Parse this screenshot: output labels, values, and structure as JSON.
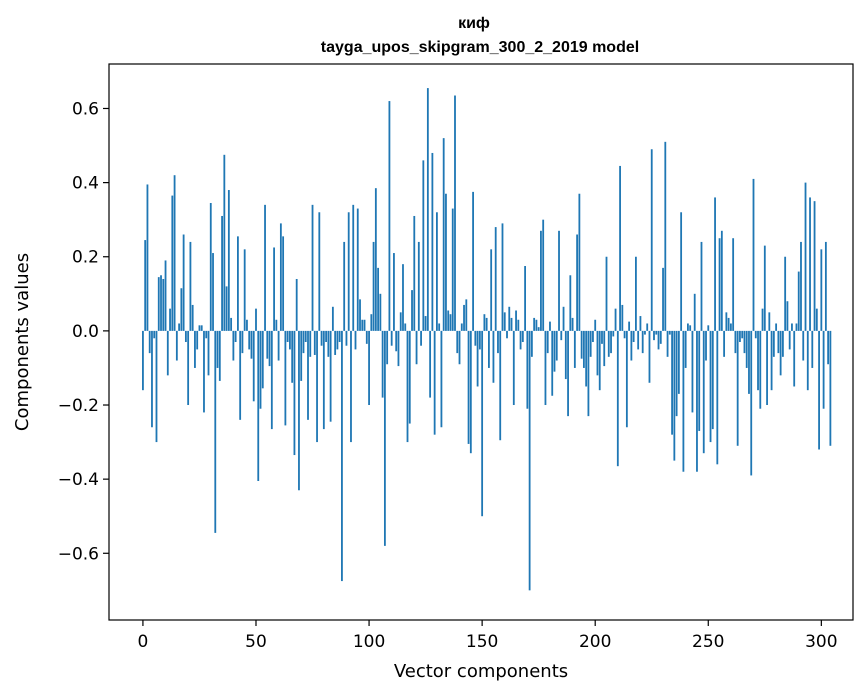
{
  "chart_data": {
    "type": "bar",
    "title": "киф",
    "subtitle": "tayga_upos_skipgram_300_2_2019 model",
    "xlabel": "Vector components",
    "ylabel": "Components values",
    "xlim": [
      -15,
      314
    ],
    "ylim": [
      -0.78,
      0.72
    ],
    "xticks": [
      0,
      50,
      100,
      150,
      200,
      250,
      300
    ],
    "yticks": [
      -0.6,
      -0.4,
      -0.2,
      0.0,
      0.2,
      0.4,
      0.6
    ],
    "xtick_labels": [
      "0",
      "50",
      "100",
      "150",
      "200",
      "250",
      "300"
    ],
    "ytick_labels": [
      "−0.6",
      "−0.4",
      "−0.2",
      "0.0",
      "0.2",
      "0.4",
      "0.6"
    ],
    "bar_color": "#1f77b4",
    "values": [
      -0.16,
      0.245,
      0.395,
      -0.06,
      -0.26,
      -0.02,
      -0.3,
      0.145,
      0.15,
      0.14,
      0.19,
      -0.12,
      0.06,
      0.365,
      0.42,
      -0.08,
      0.02,
      0.115,
      0.26,
      -0.03,
      -0.2,
      0.24,
      0.07,
      -0.1,
      -0.05,
      0.015,
      0.015,
      -0.22,
      -0.02,
      -0.12,
      0.345,
      0.21,
      -0.545,
      -0.1,
      -0.135,
      0.31,
      0.475,
      0.12,
      0.38,
      0.035,
      -0.08,
      -0.03,
      0.255,
      -0.24,
      -0.06,
      0.22,
      0.03,
      -0.05,
      -0.075,
      -0.19,
      0.06,
      -0.405,
      -0.21,
      -0.155,
      0.34,
      -0.075,
      -0.095,
      -0.265,
      0.225,
      0.03,
      -0.08,
      0.29,
      0.255,
      -0.255,
      -0.03,
      -0.05,
      -0.14,
      -0.335,
      0.14,
      -0.43,
      -0.135,
      -0.06,
      -0.03,
      -0.24,
      -0.07,
      0.34,
      -0.065,
      -0.3,
      0.32,
      -0.04,
      -0.265,
      -0.03,
      -0.07,
      -0.245,
      0.065,
      -0.065,
      -0.05,
      -0.03,
      -0.675,
      0.24,
      -0.04,
      0.32,
      -0.3,
      0.34,
      -0.05,
      0.33,
      0.085,
      0.03,
      0.03,
      -0.035,
      -0.2,
      0.045,
      0.24,
      0.385,
      0.17,
      0.1,
      -0.18,
      -0.58,
      -0.09,
      0.62,
      -0.04,
      0.21,
      -0.055,
      -0.095,
      0.05,
      0.18,
      0.02,
      -0.3,
      -0.25,
      0.11,
      0.31,
      -0.09,
      0.24,
      -0.04,
      0.46,
      0.04,
      0.655,
      -0.18,
      0.48,
      -0.28,
      0.32,
      0.02,
      -0.26,
      0.52,
      0.37,
      0.055,
      0.045,
      0.33,
      0.635,
      -0.06,
      -0.09,
      0.02,
      0.07,
      0.085,
      -0.305,
      -0.33,
      0.375,
      -0.04,
      -0.15,
      -0.05,
      -0.5,
      0.045,
      0.035,
      -0.1,
      0.22,
      -0.14,
      0.28,
      -0.06,
      -0.295,
      0.29,
      0.05,
      -0.02,
      0.065,
      0.035,
      -0.2,
      0.055,
      0.03,
      -0.05,
      -0.03,
      0.175,
      -0.21,
      -0.7,
      -0.07,
      0.035,
      0.03,
      0.01,
      0.27,
      0.3,
      -0.2,
      -0.06,
      0.025,
      -0.175,
      -0.11,
      -0.08,
      0.27,
      -0.025,
      0.065,
      -0.13,
      -0.23,
      0.15,
      0.035,
      -0.1,
      0.26,
      0.37,
      -0.075,
      -0.1,
      -0.15,
      -0.23,
      -0.07,
      -0.03,
      0.03,
      -0.12,
      -0.16,
      -0.035,
      -0.095,
      0.2,
      -0.07,
      -0.06,
      -0.015,
      0.06,
      -0.365,
      0.445,
      0.07,
      -0.02,
      -0.26,
      0.025,
      -0.08,
      -0.03,
      0.2,
      -0.05,
      0.04,
      -0.06,
      -0.01,
      0.02,
      -0.14,
      0.49,
      -0.025,
      -0.01,
      -0.05,
      -0.035,
      0.17,
      0.51,
      -0.07,
      -0.01,
      -0.28,
      -0.35,
      -0.23,
      -0.17,
      0.32,
      -0.38,
      -0.1,
      0.02,
      0.015,
      -0.22,
      0.1,
      -0.38,
      -0.27,
      0.24,
      -0.33,
      -0.08,
      0.015,
      -0.3,
      -0.265,
      0.36,
      -0.36,
      0.25,
      0.27,
      -0.07,
      0.05,
      0.035,
      0.02,
      0.25,
      -0.06,
      -0.31,
      -0.03,
      -0.02,
      -0.06,
      -0.1,
      -0.17,
      -0.39,
      0.41,
      -0.02,
      -0.16,
      -0.21,
      0.06,
      0.23,
      -0.2,
      0.05,
      -0.16,
      -0.07,
      0.02,
      -0.06,
      -0.12,
      -0.07,
      0.2,
      0.08,
      -0.05,
      0.02,
      -0.15,
      0.02,
      0.16,
      0.24,
      -0.08,
      0.4,
      -0.16,
      0.36,
      -0.1,
      0.35,
      0.06,
      -0.32,
      0.22,
      -0.21,
      0.24,
      -0.09,
      -0.31
    ]
  }
}
